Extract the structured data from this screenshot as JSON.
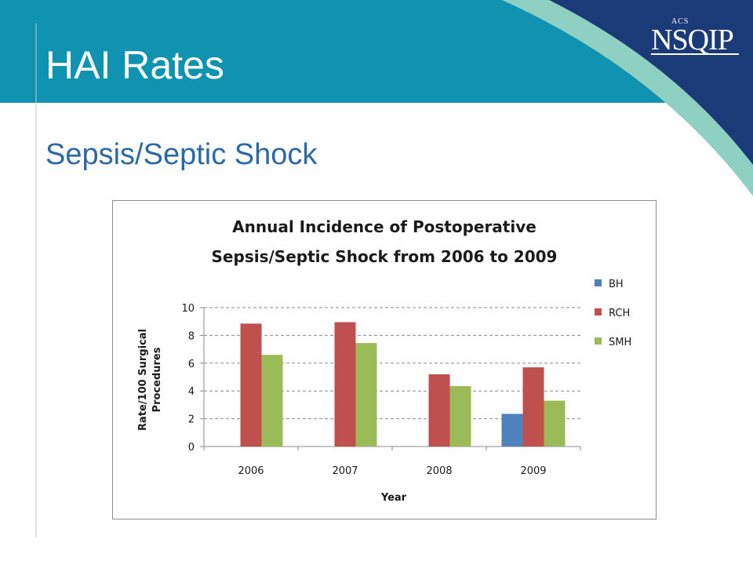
{
  "slide": {
    "title": "HAI Rates",
    "subtitle": "Sepsis/Septic Shock",
    "logo": {
      "acs": "ACS",
      "name": "NSQIP"
    },
    "colors": {
      "header": "#0f93b0",
      "corner": "#1b3b78",
      "stripe": "#8ed0c1",
      "subtitle": "#2a6aa6"
    }
  },
  "chart_data": {
    "type": "bar",
    "title": [
      "Annual Incidence of Postoperative",
      "Sepsis/Septic Shock from 2006 to 2009"
    ],
    "xlabel": "Year",
    "ylabel": [
      "Rate/100 Surgical",
      "Procedures"
    ],
    "categories": [
      "2006",
      "2007",
      "2008",
      "2009"
    ],
    "series": [
      {
        "name": "BH",
        "color": "#4f81bd",
        "values": [
          null,
          null,
          null,
          2.35
        ]
      },
      {
        "name": "RCH",
        "color": "#c0504d",
        "values": [
          8.85,
          8.95,
          5.2,
          5.7
        ]
      },
      {
        "name": "SMH",
        "color": "#9bbb59",
        "values": [
          6.6,
          7.45,
          4.35,
          3.3
        ]
      }
    ],
    "ylim": [
      0,
      10
    ],
    "yticks": [
      0,
      2,
      4,
      6,
      8,
      10
    ],
    "grid": true,
    "legend": "right"
  }
}
